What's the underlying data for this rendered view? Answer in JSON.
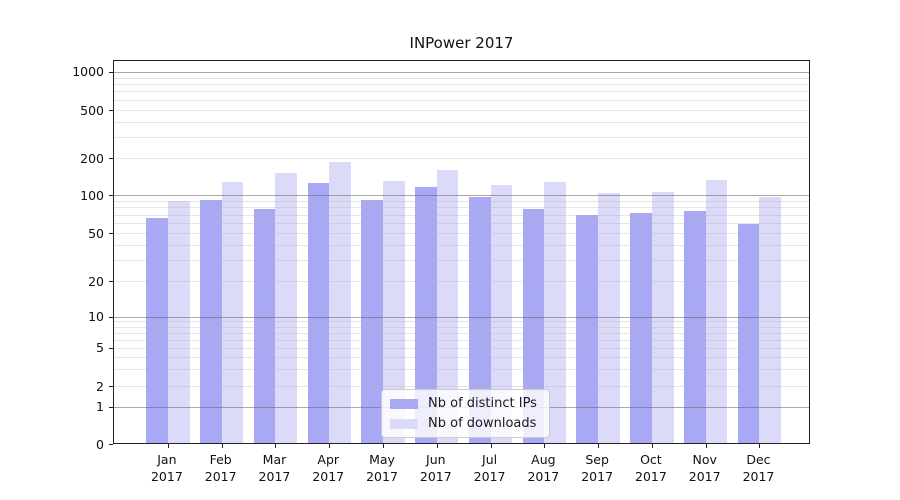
{
  "title": "INPower 2017",
  "chart_data": {
    "type": "bar",
    "title": "INPower 2017",
    "categories": [
      "Jan",
      "Feb",
      "Mar",
      "Apr",
      "May",
      "Jun",
      "Jul",
      "Aug",
      "Sep",
      "Oct",
      "Nov",
      "Dec"
    ],
    "year_label": "2017",
    "series": [
      {
        "name": "Nb of distinct IPs",
        "color": "#a8a8f4",
        "values": [
          66,
          91,
          77,
          125,
          91,
          117,
          97,
          77,
          70,
          72,
          75,
          59
        ]
      },
      {
        "name": "Nb of downloads",
        "color": "#dbdbf9",
        "values": [
          90,
          128,
          152,
          185,
          130,
          161,
          121,
          127,
          103,
          106,
          132,
          97
        ]
      }
    ],
    "yscale": "symlog",
    "ylim": [
      0,
      1400
    ],
    "ytick_labels": [
      "0",
      "1",
      "2",
      "5",
      "10",
      "20",
      "50",
      "100",
      "200",
      "500",
      "1000"
    ],
    "ytick_values": [
      0,
      1,
      2,
      5,
      10,
      20,
      50,
      100,
      200,
      500,
      1000
    ],
    "minor_grid_values": [
      2,
      3,
      4,
      5,
      6,
      7,
      8,
      9,
      20,
      30,
      40,
      50,
      60,
      70,
      80,
      90,
      200,
      300,
      400,
      500,
      600,
      700,
      800,
      900
    ],
    "major_grid_values": [
      1,
      10,
      100,
      1000
    ],
    "grid": true,
    "legend_position": "lower center",
    "xlabel": "",
    "ylabel": ""
  },
  "colors": {
    "series_ips": "#a8a8f4",
    "series_downloads": "#dbdbf9",
    "major_grid": "#6e6e6e",
    "minor_grid": "#d9d9d9",
    "axis": "#222222",
    "background": "#ffffff"
  }
}
